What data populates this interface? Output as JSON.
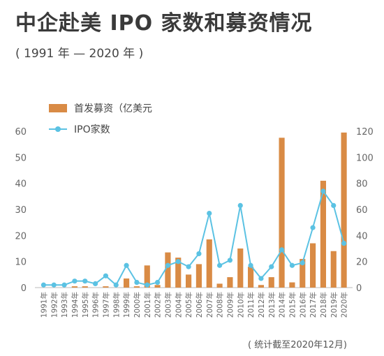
{
  "header": {
    "title": "中企赴美 IPO 家数和募资情况",
    "subtitle": "( 1991 年 — 2020 年 )"
  },
  "footnote": "( 统计截至2020年12月)",
  "colors": {
    "bar": "#d98b45",
    "line": "#5bc2e3",
    "axis": "#999999"
  },
  "chart_data": {
    "type": "bar",
    "categories": [
      "1991年",
      "1992年",
      "1993年",
      "1994年",
      "1995年",
      "1996年",
      "1997年",
      "1998年",
      "1999年",
      "2000年",
      "2001年",
      "2002年",
      "2003年",
      "2004年",
      "2005年",
      "2006年",
      "2007年",
      "2008年",
      "2009年",
      "2010年",
      "2011年",
      "2012年",
      "2013年",
      "2014年",
      "2015年",
      "2016年",
      "2017年",
      "2018年",
      "2019年",
      "2020年"
    ],
    "series": [
      {
        "name": "首发募资（亿美元",
        "axis": "left",
        "values": [
          0,
          0,
          0,
          0.5,
          0.5,
          0,
          0.5,
          0,
          3.5,
          0.5,
          8.5,
          1,
          13.5,
          11.5,
          5,
          9,
          18.5,
          1.5,
          4,
          15,
          8,
          1,
          4,
          57.5,
          2,
          11,
          17,
          41,
          14,
          59.5
        ]
      },
      {
        "name": "IPO家数",
        "axis": "right",
        "values": [
          2,
          2,
          2,
          5,
          5,
          3,
          9,
          2,
          17,
          4,
          2,
          4,
          17,
          20,
          16,
          26,
          57,
          17,
          21,
          63,
          17,
          7,
          16,
          29,
          17,
          19,
          46,
          74,
          63,
          34
        ]
      }
    ],
    "ylim_left": [
      0,
      60
    ],
    "ylim_right": [
      0,
      120
    ],
    "yticks_left": [
      0,
      10,
      20,
      30,
      40,
      50,
      60
    ],
    "yticks_right": [
      0,
      20,
      40,
      60,
      80,
      100,
      120
    ],
    "legend_position": "top-left",
    "grid": false
  }
}
